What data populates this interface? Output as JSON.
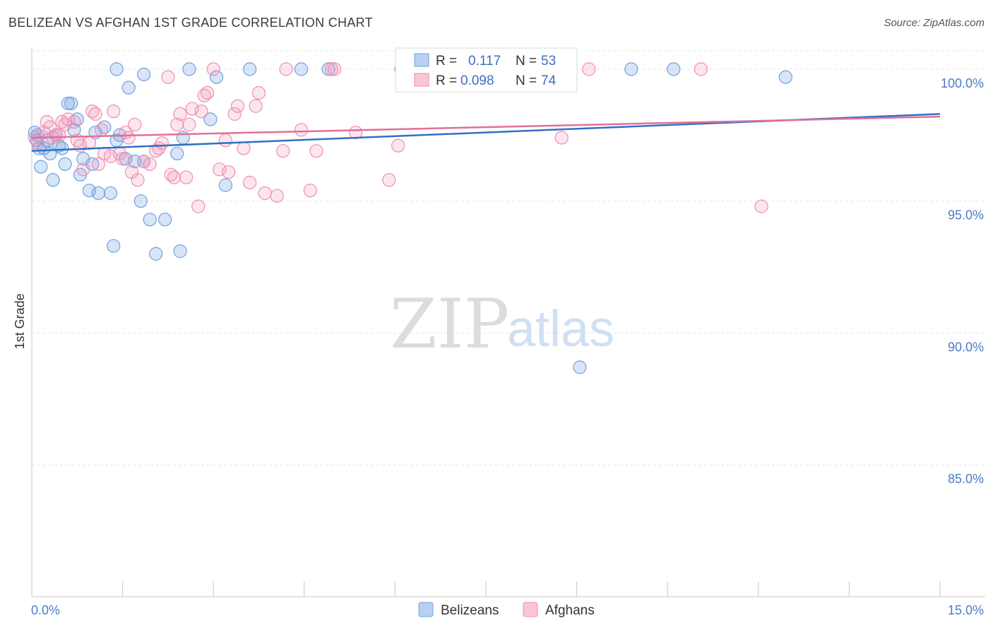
{
  "title": "BELIZEAN VS AFGHAN 1ST GRADE CORRELATION CHART",
  "source": "Source: ZipAtlas.com",
  "watermark": {
    "zip": "ZIP",
    "atlas": "atlas"
  },
  "chart_data": {
    "type": "scatter",
    "xlabel": "",
    "ylabel": "1st Grade",
    "xlim": [
      0.0,
      15.0
    ],
    "ylim": [
      80.0,
      100.8
    ],
    "x_tick_labels": [
      "0.0%",
      "15.0%"
    ],
    "y_ticks": [
      100.0,
      95.0,
      90.0,
      85.0
    ],
    "y_tick_labels": [
      "100.0%",
      "95.0%",
      "90.0%",
      "85.0%"
    ],
    "grid": true,
    "legend_position": "bottom-center",
    "stats_box": [
      {
        "r_label": "R =",
        "r_value": "0.117",
        "n_label": "N =",
        "n_value": "53"
      },
      {
        "r_label": "R =",
        "r_value": "0.098",
        "n_label": "N =",
        "n_value": 74
      }
    ],
    "series": [
      {
        "name": "Belizeans",
        "color": "#6fa0e0",
        "line_color": "#3270c8",
        "trend": {
          "x": [
            0.0,
            15.0
          ],
          "y": [
            96.9,
            98.3
          ]
        },
        "points": [
          [
            0.05,
            97.6
          ],
          [
            0.08,
            97.3
          ],
          [
            0.1,
            97.5
          ],
          [
            0.12,
            97.0
          ],
          [
            0.15,
            96.3
          ],
          [
            0.2,
            97.0
          ],
          [
            0.25,
            97.3
          ],
          [
            0.35,
            95.8
          ],
          [
            0.4,
            97.5
          ],
          [
            0.45,
            97.1
          ],
          [
            0.55,
            96.4
          ],
          [
            0.6,
            98.7
          ],
          [
            0.65,
            98.7
          ],
          [
            0.7,
            97.7
          ],
          [
            0.75,
            98.1
          ],
          [
            0.8,
            96.0
          ],
          [
            0.85,
            96.6
          ],
          [
            0.95,
            95.4
          ],
          [
            1.0,
            96.4
          ],
          [
            1.05,
            97.6
          ],
          [
            1.1,
            95.3
          ],
          [
            1.2,
            97.8
          ],
          [
            1.3,
            95.3
          ],
          [
            1.35,
            93.3
          ],
          [
            1.4,
            97.3
          ],
          [
            1.45,
            97.5
          ],
          [
            1.55,
            96.6
          ],
          [
            1.6,
            99.3
          ],
          [
            1.7,
            96.5
          ],
          [
            1.8,
            95.0
          ],
          [
            1.85,
            96.5
          ],
          [
            1.95,
            94.3
          ],
          [
            2.05,
            93.0
          ],
          [
            2.2,
            94.3
          ],
          [
            2.4,
            96.8
          ],
          [
            2.45,
            93.1
          ],
          [
            2.5,
            97.4
          ],
          [
            2.95,
            98.1
          ],
          [
            3.05,
            99.7
          ],
          [
            3.2,
            95.6
          ],
          [
            3.6,
            100.0
          ],
          [
            4.45,
            100.0
          ],
          [
            4.9,
            100.0
          ],
          [
            6.1,
            100.0
          ],
          [
            9.05,
            88.7
          ],
          [
            9.9,
            100.0
          ],
          [
            10.6,
            100.0
          ],
          [
            12.45,
            99.7
          ],
          [
            1.4,
            100.0
          ],
          [
            1.85,
            99.8
          ],
          [
            2.6,
            100.0
          ],
          [
            0.3,
            96.8
          ],
          [
            0.5,
            97.0
          ]
        ]
      },
      {
        "name": "Afghans",
        "color": "#f08db0",
        "line_color": "#e0709a",
        "trend": {
          "x": [
            0.0,
            15.0
          ],
          "y": [
            97.4,
            98.2
          ]
        },
        "points": [
          [
            0.05,
            97.4
          ],
          [
            0.1,
            97.2
          ],
          [
            0.2,
            97.6
          ],
          [
            0.25,
            98.0
          ],
          [
            0.3,
            97.8
          ],
          [
            0.35,
            97.4
          ],
          [
            0.45,
            97.5
          ],
          [
            0.5,
            98.0
          ],
          [
            0.55,
            97.9
          ],
          [
            0.6,
            98.1
          ],
          [
            0.7,
            98.0
          ],
          [
            0.75,
            97.3
          ],
          [
            0.8,
            97.1
          ],
          [
            0.85,
            96.2
          ],
          [
            0.95,
            97.2
          ],
          [
            1.0,
            98.4
          ],
          [
            1.05,
            98.3
          ],
          [
            1.1,
            96.4
          ],
          [
            1.15,
            97.7
          ],
          [
            1.2,
            96.8
          ],
          [
            1.3,
            96.7
          ],
          [
            1.35,
            98.4
          ],
          [
            1.45,
            96.8
          ],
          [
            1.55,
            97.6
          ],
          [
            1.6,
            97.4
          ],
          [
            1.65,
            96.1
          ],
          [
            1.7,
            97.9
          ],
          [
            1.75,
            95.8
          ],
          [
            1.85,
            96.5
          ],
          [
            1.95,
            96.4
          ],
          [
            2.05,
            96.9
          ],
          [
            2.1,
            97.0
          ],
          [
            2.15,
            97.2
          ],
          [
            2.25,
            99.7
          ],
          [
            2.3,
            96.0
          ],
          [
            2.35,
            95.9
          ],
          [
            2.4,
            97.9
          ],
          [
            2.45,
            98.3
          ],
          [
            2.55,
            95.9
          ],
          [
            2.6,
            97.9
          ],
          [
            2.65,
            98.5
          ],
          [
            2.75,
            94.8
          ],
          [
            2.8,
            98.4
          ],
          [
            2.85,
            99.0
          ],
          [
            2.9,
            99.1
          ],
          [
            3.0,
            100.0
          ],
          [
            3.1,
            96.2
          ],
          [
            3.2,
            97.3
          ],
          [
            3.25,
            96.1
          ],
          [
            3.35,
            98.3
          ],
          [
            3.4,
            98.6
          ],
          [
            3.5,
            97.0
          ],
          [
            3.6,
            95.7
          ],
          [
            3.7,
            98.6
          ],
          [
            3.75,
            99.1
          ],
          [
            3.85,
            95.3
          ],
          [
            4.05,
            95.2
          ],
          [
            4.15,
            96.9
          ],
          [
            4.2,
            100.0
          ],
          [
            4.45,
            97.7
          ],
          [
            4.6,
            95.4
          ],
          [
            4.7,
            96.9
          ],
          [
            4.95,
            100.0
          ],
          [
            5.35,
            97.6
          ],
          [
            5.9,
            95.8
          ],
          [
            6.05,
            97.1
          ],
          [
            7.4,
            100.0
          ],
          [
            8.75,
            97.4
          ],
          [
            9.2,
            100.0
          ],
          [
            11.05,
            100.0
          ],
          [
            12.05,
            94.8
          ],
          [
            5.0,
            100.0
          ],
          [
            0.4,
            97.5
          ],
          [
            1.5,
            96.6
          ]
        ]
      }
    ]
  }
}
